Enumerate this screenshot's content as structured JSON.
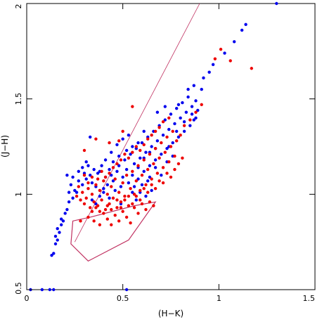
{
  "chart_data": {
    "type": "scatter",
    "title": "",
    "xlabel": "(H−K)",
    "ylabel": "(J−H)",
    "xlim": [
      0,
      1.5
    ],
    "ylim": [
      0.5,
      2
    ],
    "x_ticks": [
      "0",
      "0.5",
      "1",
      "1.5"
    ],
    "y_ticks": [
      "0.5",
      "1",
      "1.5",
      "2"
    ],
    "x_tick_values": [
      0,
      0.5,
      1,
      1.5
    ],
    "y_tick_values": [
      0.5,
      1,
      1.5,
      2
    ],
    "grid": false,
    "legend": "none",
    "reference_line": {
      "points": [
        [
          0.25,
          0.75
        ],
        [
          0.9,
          2.0
        ]
      ],
      "color": "#c03060"
    },
    "polygon": {
      "points": [
        [
          0.32,
          0.65
        ],
        [
          0.23,
          0.74
        ],
        [
          0.24,
          0.86
        ],
        [
          0.33,
          0.88
        ],
        [
          0.56,
          0.94
        ],
        [
          0.67,
          0.96
        ],
        [
          0.53,
          0.76
        ]
      ],
      "color": "#c03060"
    },
    "series": [
      {
        "color": "#0000ee",
        "points": [
          [
            0.02,
            0.5
          ],
          [
            0.08,
            0.5
          ],
          [
            0.12,
            0.5
          ],
          [
            0.14,
            0.5
          ],
          [
            0.52,
            0.5
          ],
          [
            0.13,
            0.68
          ],
          [
            0.14,
            0.69
          ],
          [
            0.15,
            0.74
          ],
          [
            0.16,
            0.76
          ],
          [
            0.15,
            0.78
          ],
          [
            0.17,
            0.8
          ],
          [
            0.16,
            0.82
          ],
          [
            0.18,
            0.84
          ],
          [
            0.19,
            0.86
          ],
          [
            0.18,
            0.87
          ],
          [
            0.2,
            0.9
          ],
          [
            0.21,
            0.92
          ],
          [
            0.22,
            0.96
          ],
          [
            0.24,
            0.98
          ],
          [
            0.22,
            1.01
          ],
          [
            0.25,
            1.02
          ],
          [
            0.23,
            1.05
          ],
          [
            0.21,
            1.1
          ],
          [
            0.24,
            1.09
          ],
          [
            0.27,
            1.07
          ],
          [
            0.29,
            1.05
          ],
          [
            0.3,
            1.11
          ],
          [
            0.31,
            1.08
          ],
          [
            0.33,
            1.1
          ],
          [
            0.34,
            1.06
          ],
          [
            0.36,
            1.04
          ],
          [
            0.37,
            1.11
          ],
          [
            0.38,
            1.12
          ],
          [
            0.4,
            1.03
          ],
          [
            0.41,
            1.09
          ],
          [
            0.42,
            1.05
          ],
          [
            0.43,
            1.13
          ],
          [
            0.44,
            1.1
          ],
          [
            0.45,
            1.07
          ],
          [
            0.46,
            1.02
          ],
          [
            0.47,
            1.12
          ],
          [
            0.48,
            1.15
          ],
          [
            0.49,
            1.04
          ],
          [
            0.5,
            1.09
          ],
          [
            0.51,
            1.18
          ],
          [
            0.52,
            1.13
          ],
          [
            0.53,
            1.06
          ],
          [
            0.54,
            1.21
          ],
          [
            0.55,
            1.1
          ],
          [
            0.56,
            1.16
          ],
          [
            0.57,
            1.24
          ],
          [
            0.58,
            1.08
          ],
          [
            0.59,
            1.19
          ],
          [
            0.6,
            1.27
          ],
          [
            0.61,
            1.12
          ],
          [
            0.62,
            1.22
          ],
          [
            0.63,
            1.3
          ],
          [
            0.64,
            1.15
          ],
          [
            0.65,
            1.25
          ],
          [
            0.66,
            1.33
          ],
          [
            0.67,
            1.18
          ],
          [
            0.68,
            1.28
          ],
          [
            0.69,
            1.36
          ],
          [
            0.7,
            1.21
          ],
          [
            0.71,
            1.31
          ],
          [
            0.72,
            1.39
          ],
          [
            0.73,
            1.24
          ],
          [
            0.74,
            1.34
          ],
          [
            0.75,
            1.42
          ],
          [
            0.76,
            1.27
          ],
          [
            0.77,
            1.37
          ],
          [
            0.78,
            1.45
          ],
          [
            0.79,
            1.3
          ],
          [
            0.8,
            1.4
          ],
          [
            0.81,
            1.48
          ],
          [
            0.82,
            1.33
          ],
          [
            0.83,
            1.43
          ],
          [
            0.84,
            1.51
          ],
          [
            0.85,
            1.36
          ],
          [
            0.86,
            1.46
          ],
          [
            0.87,
            1.39
          ],
          [
            0.88,
            1.49
          ],
          [
            0.89,
            1.44
          ],
          [
            0.91,
            1.55
          ],
          [
            0.92,
            1.61
          ],
          [
            0.95,
            1.64
          ],
          [
            0.97,
            1.68
          ],
          [
            1.03,
            1.74
          ],
          [
            1.08,
            1.8
          ],
          [
            1.12,
            1.86
          ],
          [
            1.14,
            1.89
          ],
          [
            1.3,
            2.0
          ],
          [
            0.33,
            1.3
          ],
          [
            0.31,
            1.17
          ],
          [
            0.29,
            1.14
          ],
          [
            0.27,
            1.12
          ],
          [
            0.26,
            1.01
          ],
          [
            0.44,
            1.22
          ],
          [
            0.47,
            1.26
          ],
          [
            0.5,
            1.29
          ],
          [
            0.53,
            1.31
          ],
          [
            0.61,
            1.33
          ],
          [
            0.68,
            1.43
          ],
          [
            0.72,
            1.46
          ],
          [
            0.79,
            1.47
          ],
          [
            0.84,
            1.55
          ],
          [
            0.87,
            1.57
          ],
          [
            0.56,
            1.04
          ],
          [
            0.59,
            1.01
          ],
          [
            0.62,
            0.99
          ],
          [
            0.65,
            1.02
          ],
          [
            0.63,
            1.07
          ],
          [
            0.6,
            1.05
          ],
          [
            0.57,
            0.97
          ],
          [
            0.43,
            0.98
          ],
          [
            0.4,
            1.01
          ],
          [
            0.38,
            0.99
          ],
          [
            0.36,
            0.95
          ],
          [
            0.34,
            0.97
          ],
          [
            0.49,
            0.95
          ],
          [
            0.55,
            1.01
          ],
          [
            0.58,
            1.14
          ],
          [
            0.64,
            1.09
          ],
          [
            0.67,
            1.14
          ],
          [
            0.7,
            1.1
          ],
          [
            0.73,
            1.17
          ],
          [
            0.76,
            1.2
          ],
          [
            0.74,
            1.25
          ],
          [
            0.78,
            1.33
          ],
          [
            0.82,
            1.38
          ],
          [
            0.86,
            1.42
          ],
          [
            0.88,
            1.4
          ],
          [
            0.45,
            1.17
          ],
          [
            0.48,
            1.2
          ],
          [
            0.52,
            1.23
          ],
          [
            0.55,
            1.25
          ],
          [
            0.58,
            1.27
          ],
          [
            0.61,
            1.19
          ],
          [
            0.64,
            1.22
          ],
          [
            0.67,
            1.24
          ],
          [
            0.39,
            1.15
          ],
          [
            0.41,
            1.18
          ],
          [
            0.35,
            1.13
          ],
          [
            0.32,
            1.15
          ]
        ]
      },
      {
        "color": "#ee0000",
        "points": [
          [
            0.26,
            0.99
          ],
          [
            0.28,
            0.97
          ],
          [
            0.29,
            1.01
          ],
          [
            0.3,
            0.95
          ],
          [
            0.31,
            0.98
          ],
          [
            0.32,
            1.03
          ],
          [
            0.33,
            0.93
          ],
          [
            0.34,
            1.0
          ],
          [
            0.35,
            0.96
          ],
          [
            0.36,
            1.05
          ],
          [
            0.37,
            0.94
          ],
          [
            0.38,
            1.02
          ],
          [
            0.39,
            0.97
          ],
          [
            0.4,
            1.07
          ],
          [
            0.41,
            0.92
          ],
          [
            0.42,
            1.0
          ],
          [
            0.43,
            0.95
          ],
          [
            0.44,
            1.04
          ],
          [
            0.45,
            0.98
          ],
          [
            0.46,
            1.08
          ],
          [
            0.47,
            0.93
          ],
          [
            0.48,
            1.01
          ],
          [
            0.49,
            0.96
          ],
          [
            0.5,
            1.06
          ],
          [
            0.51,
            0.99
          ],
          [
            0.52,
            1.1
          ],
          [
            0.53,
            0.94
          ],
          [
            0.54,
            1.03
          ],
          [
            0.55,
            1.12
          ],
          [
            0.56,
            1.0
          ],
          [
            0.57,
            1.07
          ],
          [
            0.58,
            1.15
          ],
          [
            0.59,
            1.02
          ],
          [
            0.6,
            1.1
          ],
          [
            0.61,
            1.18
          ],
          [
            0.62,
            1.05
          ],
          [
            0.63,
            1.13
          ],
          [
            0.64,
            1.21
          ],
          [
            0.65,
            1.08
          ],
          [
            0.66,
            1.16
          ],
          [
            0.67,
            1.24
          ],
          [
            0.68,
            1.11
          ],
          [
            0.69,
            1.19
          ],
          [
            0.7,
            1.27
          ],
          [
            0.71,
            1.14
          ],
          [
            0.72,
            1.22
          ],
          [
            0.73,
            1.3
          ],
          [
            0.74,
            1.17
          ],
          [
            0.75,
            1.25
          ],
          [
            0.76,
            1.33
          ],
          [
            0.77,
            1.2
          ],
          [
            0.78,
            1.28
          ],
          [
            0.8,
            1.31
          ],
          [
            0.82,
            1.36
          ],
          [
            0.85,
            1.39
          ],
          [
            0.88,
            1.43
          ],
          [
            0.91,
            1.47
          ],
          [
            0.98,
            1.71
          ],
          [
            1.01,
            1.76
          ],
          [
            1.06,
            1.7
          ],
          [
            1.17,
            1.66
          ],
          [
            0.55,
            1.46
          ],
          [
            0.5,
            1.33
          ],
          [
            0.48,
            1.28
          ],
          [
            0.43,
            1.27
          ],
          [
            0.36,
            1.29
          ],
          [
            0.3,
            1.23
          ],
          [
            0.28,
            0.86
          ],
          [
            0.32,
            0.88
          ],
          [
            0.35,
            0.86
          ],
          [
            0.38,
            0.84
          ],
          [
            0.4,
            0.9
          ],
          [
            0.42,
            0.87
          ],
          [
            0.44,
            0.84
          ],
          [
            0.46,
            0.89
          ],
          [
            0.48,
            0.86
          ],
          [
            0.5,
            0.91
          ],
          [
            0.52,
            0.88
          ],
          [
            0.54,
            0.85
          ],
          [
            0.56,
            0.93
          ],
          [
            0.58,
            0.9
          ],
          [
            0.6,
            0.95
          ],
          [
            0.62,
            0.92
          ],
          [
            0.64,
            0.96
          ],
          [
            0.66,
            0.94
          ],
          [
            0.34,
            0.91
          ],
          [
            0.36,
            0.93
          ],
          [
            0.38,
            0.91
          ],
          [
            0.42,
            0.94
          ],
          [
            0.44,
            0.92
          ],
          [
            0.47,
            0.97
          ],
          [
            0.49,
            0.93
          ],
          [
            0.51,
            0.97
          ],
          [
            0.53,
            0.99
          ],
          [
            0.55,
            0.95
          ],
          [
            0.57,
            0.99
          ],
          [
            0.59,
            0.97
          ],
          [
            0.61,
            1.03
          ],
          [
            0.63,
            1.01
          ],
          [
            0.65,
            1.05
          ],
          [
            0.67,
            1.03
          ],
          [
            0.69,
            1.07
          ],
          [
            0.71,
            1.06
          ],
          [
            0.73,
            1.11
          ],
          [
            0.75,
            1.09
          ],
          [
            0.77,
            1.13
          ],
          [
            0.79,
            1.16
          ],
          [
            0.81,
            1.19
          ],
          [
            0.39,
            1.12
          ],
          [
            0.41,
            1.09
          ],
          [
            0.43,
            1.11
          ],
          [
            0.45,
            1.14
          ],
          [
            0.47,
            1.16
          ],
          [
            0.49,
            1.18
          ],
          [
            0.51,
            1.21
          ],
          [
            0.53,
            1.19
          ],
          [
            0.55,
            1.22
          ],
          [
            0.57,
            1.25
          ],
          [
            0.59,
            1.23
          ],
          [
            0.61,
            1.26
          ],
          [
            0.63,
            1.29
          ],
          [
            0.65,
            1.31
          ],
          [
            0.67,
            1.33
          ],
          [
            0.69,
            1.35
          ],
          [
            0.71,
            1.38
          ],
          [
            0.74,
            1.4
          ],
          [
            0.32,
            1.06
          ],
          [
            0.34,
            1.09
          ],
          [
            0.37,
            1.08
          ],
          [
            0.3,
            1.1
          ],
          [
            0.27,
            1.04
          ]
        ]
      }
    ]
  }
}
